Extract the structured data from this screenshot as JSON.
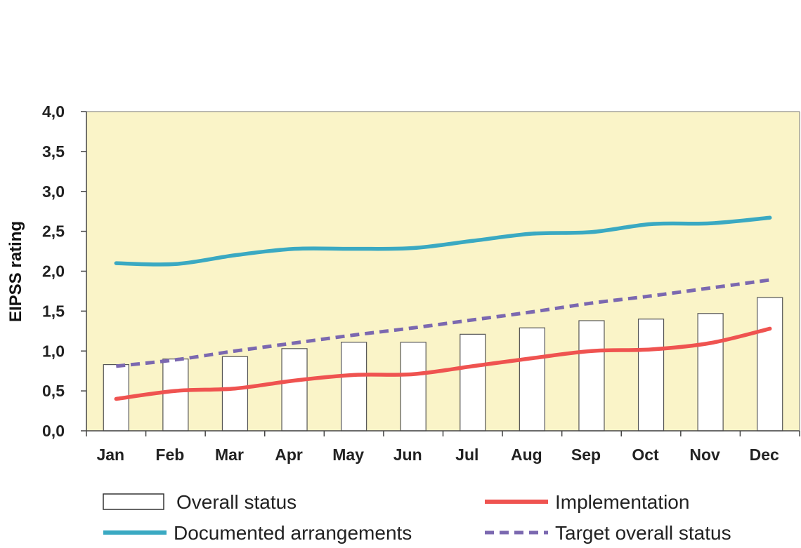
{
  "chart_data": {
    "type": "bar",
    "categories": [
      "Jan",
      "Feb",
      "Mar",
      "Apr",
      "May",
      "Jun",
      "Jul",
      "Aug",
      "Sep",
      "Oct",
      "Nov",
      "Dec"
    ],
    "ylabel": "EIPSS rating",
    "xlabel": "",
    "title": "",
    "ylim": [
      0,
      4
    ],
    "yticks": [
      "0,0",
      "0,5",
      "1,0",
      "1,5",
      "2,0",
      "2,5",
      "3,0",
      "3,5",
      "4,0"
    ],
    "grid": false,
    "legend_position": "bottom",
    "series": [
      {
        "name": "Overall status",
        "kind": "bar",
        "color": "#ffffff",
        "values": [
          0.83,
          0.9,
          0.93,
          1.03,
          1.11,
          1.11,
          1.21,
          1.29,
          1.38,
          1.4,
          1.47,
          1.67
        ]
      },
      {
        "name": "Implementation",
        "kind": "line",
        "color": "#ef5350",
        "values": [
          0.4,
          0.5,
          0.53,
          0.63,
          0.7,
          0.71,
          0.81,
          0.91,
          1.0,
          1.02,
          1.1,
          1.28
        ]
      },
      {
        "name": "Documented arrangements",
        "kind": "line",
        "color": "#3aa9c2",
        "values": [
          2.1,
          2.09,
          2.2,
          2.28,
          2.28,
          2.29,
          2.38,
          2.47,
          2.49,
          2.59,
          2.6,
          2.67
        ]
      },
      {
        "name": "Target overall status",
        "kind": "dashed-line",
        "color": "#7b68b0",
        "values": [
          0.81,
          0.89,
          1.0,
          1.1,
          1.2,
          1.29,
          1.39,
          1.49,
          1.6,
          1.69,
          1.79,
          1.89
        ]
      }
    ],
    "plot_background": "#faf4c8"
  }
}
